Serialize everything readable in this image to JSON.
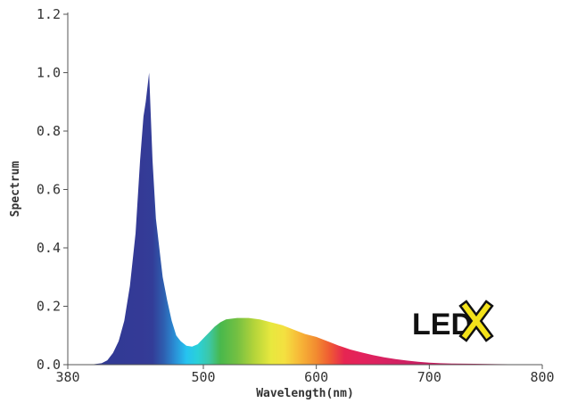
{
  "chart_data": {
    "type": "area",
    "title": "",
    "xlabel": "Wavelength(nm)",
    "ylabel": "Spectrum",
    "xlim": [
      380,
      800
    ],
    "ylim": [
      0,
      1.2
    ],
    "xticks": [
      380,
      500,
      600,
      700,
      800
    ],
    "xtick_labels": [
      "380",
      "500",
      "600",
      "700",
      "800"
    ],
    "yticks": [
      0,
      0.2,
      0.4,
      0.6,
      0.8,
      1.0,
      1.2
    ],
    "ytick_labels": [
      "0.0",
      "0.2",
      "0.4",
      "0.6",
      "0.8",
      "1.0",
      "1.2"
    ],
    "grid": false,
    "fill": "visible-spectrum colors by wavelength",
    "series": [
      {
        "x": [
          380,
          400,
          410,
          415,
          420,
          425,
          430,
          435,
          440,
          444,
          447,
          449,
          452,
          455,
          458,
          461,
          464,
          468,
          472,
          476,
          480,
          485,
          490,
          495,
          500,
          505,
          510,
          515,
          520,
          530,
          540,
          550,
          560,
          570,
          580,
          590,
          600,
          610,
          620,
          630,
          640,
          650,
          660,
          670,
          680,
          690,
          700,
          710,
          720,
          740,
          760,
          780,
          800
        ],
        "y": [
          0.0,
          0.0,
          0.005,
          0.015,
          0.04,
          0.08,
          0.15,
          0.27,
          0.45,
          0.7,
          0.85,
          0.9,
          1.0,
          0.7,
          0.5,
          0.4,
          0.3,
          0.22,
          0.15,
          0.1,
          0.08,
          0.065,
          0.062,
          0.07,
          0.09,
          0.11,
          0.13,
          0.145,
          0.155,
          0.16,
          0.16,
          0.155,
          0.145,
          0.135,
          0.12,
          0.105,
          0.095,
          0.08,
          0.065,
          0.052,
          0.042,
          0.033,
          0.025,
          0.019,
          0.014,
          0.01,
          0.007,
          0.005,
          0.004,
          0.003,
          0.002,
          0.001,
          0.0
        ]
      }
    ]
  },
  "logo": {
    "text": "LED",
    "mark": "X"
  }
}
